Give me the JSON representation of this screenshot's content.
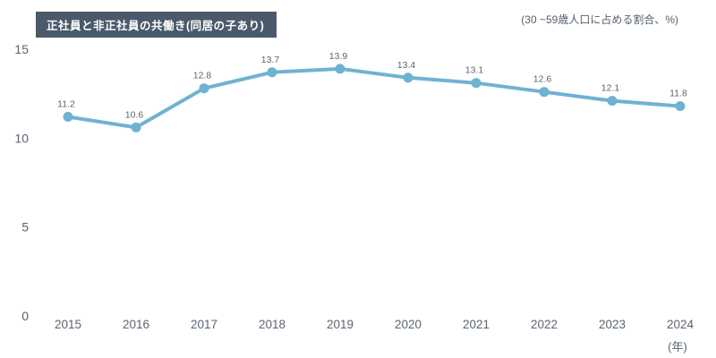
{
  "header": {
    "title": "正社員と非正社員の共働き(同居の子あり)",
    "unit_note": "(30 ~59歳人口に占める割合、%)"
  },
  "chart_data": {
    "type": "line",
    "title": "正社員と非正社員の共働き(同居の子あり)",
    "subtitle": "(30 ~59歳人口に占める割合、%)",
    "categories": [
      "2015",
      "2016",
      "2017",
      "2018",
      "2019",
      "2020",
      "2021",
      "2022",
      "2023",
      "2024"
    ],
    "series": [
      {
        "name": "正社員と非正社員の共働き(同居の子あり)",
        "values": [
          11.2,
          10.6,
          12.8,
          13.7,
          13.9,
          13.4,
          13.1,
          12.6,
          12.1,
          11.8
        ]
      }
    ],
    "point_labels": [
      "11.2",
      "10.6",
      "12.8",
      "13.7",
      "13.9",
      "13.4",
      "13.1",
      "12.6",
      "12.1",
      "11.8"
    ],
    "ylim": [
      0,
      15
    ],
    "yticks": [
      0,
      5,
      10,
      15
    ],
    "xlabel": "(年)",
    "ylabel": "",
    "grid": false,
    "legend_position": "none",
    "colors": {
      "line": "#6FB2D2",
      "marker": "#6FB2D2",
      "title_box_bg": "#4A5A6B",
      "title_text": "#FFFFFF",
      "axis_text": "#5A6470",
      "data_label_text": "#5E656E",
      "background": "#FFFFFF"
    }
  }
}
